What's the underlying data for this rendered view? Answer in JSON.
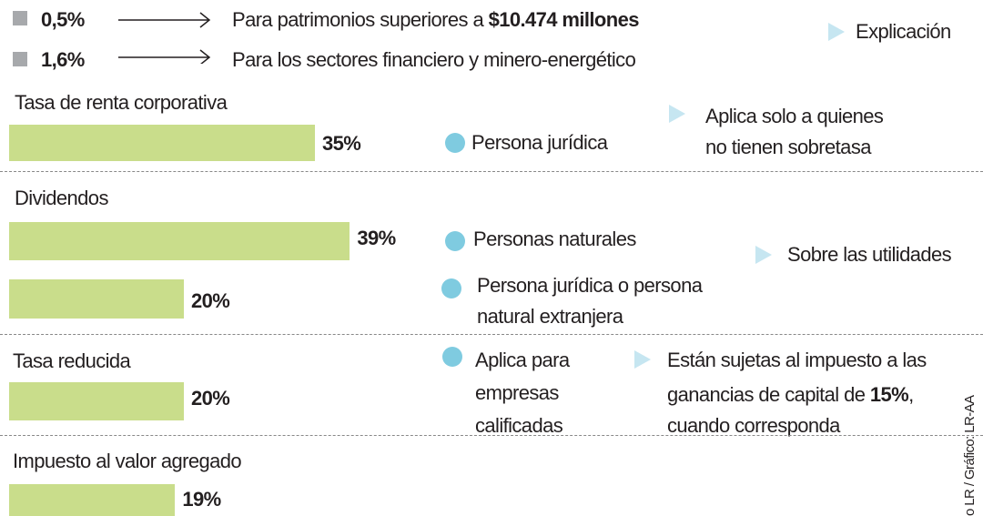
{
  "legend": [
    {
      "rate": "0,5%",
      "text": "Para patrimonios superiores a",
      "bold": "$10.474 millones"
    },
    {
      "rate": "1,6%",
      "text": "Para los sectores financiero y minero-energético"
    }
  ],
  "explanation": "Explicación",
  "sections": [
    {
      "title": "Tasa de renta corporativa",
      "bars": [
        {
          "value": 35,
          "value_label": "35%"
        }
      ],
      "who": [
        [
          "Persona jurídica"
        ]
      ],
      "note": [
        "Aplica solo a quienes",
        "no tienen sobretasa"
      ]
    },
    {
      "title": "Dividendos",
      "bars": [
        {
          "value": 39,
          "value_label": "39%"
        },
        {
          "value": 20,
          "value_label": "20%"
        }
      ],
      "who": [
        [
          "Personas naturales"
        ],
        [
          "Persona jurídica o persona",
          "natural extranjera"
        ]
      ],
      "note": [
        "Sobre las utilidades"
      ]
    },
    {
      "title": "Tasa reducida",
      "bars": [
        {
          "value": 20,
          "value_label": "20%"
        }
      ],
      "who": [
        [
          "Aplica para",
          "empresas",
          "calificadas"
        ]
      ],
      "note": [
        "Están sujetas al impuesto a las",
        "ganancias de capital de",
        "15%",
        ",",
        "cuando corresponda"
      ]
    },
    {
      "title": "Impuesto al valor agregado",
      "bars": [
        {
          "value": 19,
          "value_label": "19%"
        }
      ]
    }
  ],
  "credit": "o LR / Gráfico: LR-AA"
}
